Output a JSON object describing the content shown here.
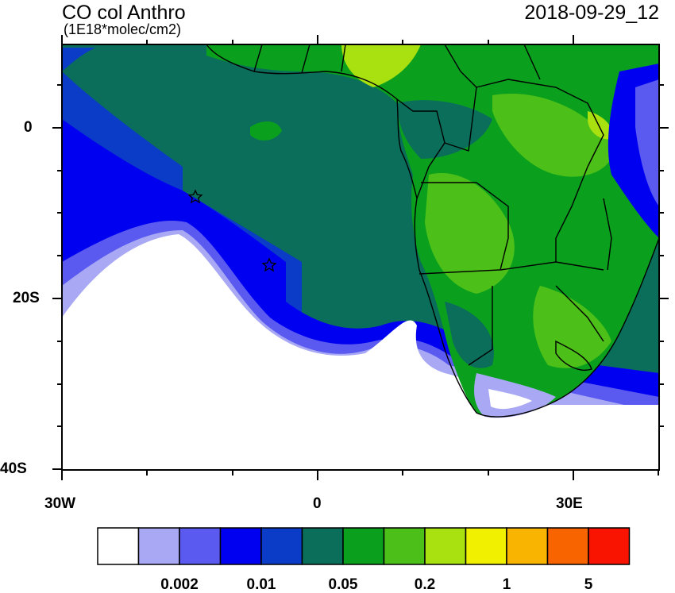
{
  "header": {
    "title": "CO col Anthro",
    "units": "(1E18*molec/cm2)",
    "datetime": "2018-09-29_12"
  },
  "axes": {
    "x_ticks": [
      {
        "lon": -30,
        "label": "30W"
      },
      {
        "lon": 0,
        "label": "0"
      },
      {
        "lon": 30,
        "label": "30E"
      }
    ],
    "y_ticks": [
      {
        "lat": 0,
        "label": "0"
      },
      {
        "lat": -20,
        "label": "20S"
      },
      {
        "lat": -40,
        "label": "40S"
      }
    ],
    "lon_range": [
      -30,
      40
    ],
    "lat_range": [
      -40,
      10
    ]
  },
  "colorbar": {
    "colors": [
      "#ffffff",
      "#a8a8f5",
      "#5a5af0",
      "#0000f0",
      "#0a3cc8",
      "#0a6e5a",
      "#0aa01e",
      "#4cc018",
      "#a8e010",
      "#f0f000",
      "#f8b400",
      "#f86400",
      "#f81400"
    ],
    "labels": [
      {
        "after_box": 2,
        "text": "0.002"
      },
      {
        "after_box": 4,
        "text": "0.01"
      },
      {
        "after_box": 6,
        "text": "0.05"
      },
      {
        "after_box": 8,
        "text": "0.2"
      },
      {
        "after_box": 10,
        "text": "1"
      },
      {
        "after_box": 12,
        "text": "5"
      }
    ]
  },
  "markers": [
    {
      "lon": -14.4,
      "lat": -8.0,
      "symbol": "star"
    },
    {
      "lon": -5.7,
      "lat": -15.9,
      "symbol": "star"
    }
  ]
}
